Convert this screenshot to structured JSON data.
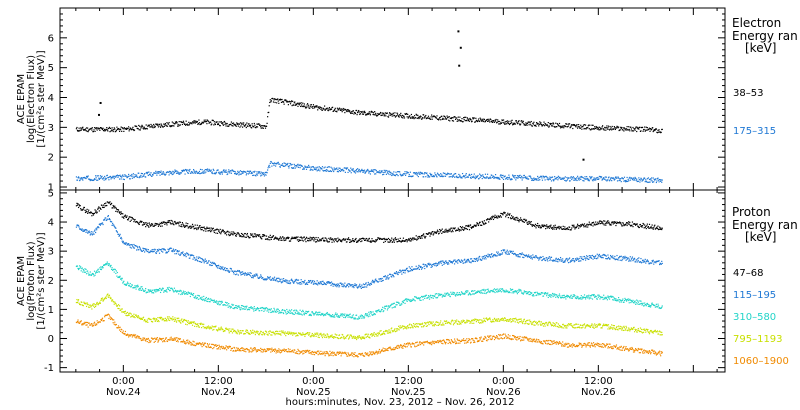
{
  "chart_data": [
    {
      "type": "scatter",
      "panel": "electron",
      "ylabel": [
        "ACE EPAM",
        "log(Electron Flux)",
        "[1/(cm²s ster MeV)]"
      ],
      "ylim": [
        0.9,
        7.0
      ],
      "yticks": [
        1,
        2,
        3,
        4,
        5,
        6
      ],
      "xlim": [
        -8,
        76
      ],
      "legend": {
        "title": [
          "Electron",
          "Energy ran",
          "[keV]"
        ],
        "items": [
          {
            "name": "38–53",
            "color": "#000000"
          },
          {
            "name": "175–315",
            "color": "#1f78d4"
          }
        ]
      },
      "series": [
        {
          "name": "38–53",
          "color": "#000000",
          "x": [
            -6,
            0,
            5,
            10,
            15,
            18,
            18.5,
            24,
            30,
            36,
            42,
            48,
            54,
            60,
            66,
            68
          ],
          "values": [
            2.95,
            2.95,
            3.1,
            3.2,
            3.1,
            3.05,
            3.95,
            3.7,
            3.5,
            3.4,
            3.3,
            3.2,
            3.1,
            3.0,
            2.95,
            2.9
          ]
        },
        {
          "name": "175–315",
          "color": "#1f78d4",
          "x": [
            -6,
            0,
            5,
            10,
            15,
            18,
            18.5,
            24,
            30,
            36,
            42,
            48,
            54,
            60,
            66,
            68
          ],
          "values": [
            1.3,
            1.35,
            1.5,
            1.55,
            1.5,
            1.45,
            1.8,
            1.65,
            1.55,
            1.45,
            1.4,
            1.35,
            1.3,
            1.3,
            1.25,
            1.25
          ]
        }
      ],
      "outliers": [
        {
          "x": 42.2,
          "y": 6.25
        },
        {
          "x": 42.5,
          "y": 5.7
        },
        {
          "x": 42.3,
          "y": 5.1
        },
        {
          "x": -3,
          "y": 3.85
        },
        {
          "x": -3.2,
          "y": 3.45
        },
        {
          "x": 58,
          "y": 1.95
        }
      ]
    },
    {
      "type": "scatter",
      "panel": "proton",
      "ylabel": [
        "ACE EPAM",
        "log(Proton Flux)",
        "[1/(cm²s ster MeV)]"
      ],
      "ylim": [
        -1.15,
        5.1
      ],
      "yticks": [
        -1,
        0,
        1,
        2,
        3,
        4,
        5
      ],
      "xlim": [
        -8,
        76
      ],
      "legend": {
        "title": [
          "Proton",
          "Energy ran",
          "[keV]"
        ],
        "items": [
          {
            "name": "47–68",
            "color": "#000000"
          },
          {
            "name": "115–195",
            "color": "#1f78d4"
          },
          {
            "name": "310–580",
            "color": "#22d4c8"
          },
          {
            "name": "795–1193",
            "color": "#c8e000"
          },
          {
            "name": "1060–1900",
            "color": "#f08a00"
          }
        ]
      },
      "series": [
        {
          "name": "47–68",
          "color": "#000000",
          "x": [
            -6,
            -4,
            -2,
            0,
            3,
            6,
            10,
            14,
            20,
            26,
            30,
            36,
            40,
            44,
            48,
            52,
            56,
            60,
            64,
            68
          ],
          "values": [
            4.6,
            4.3,
            4.7,
            4.2,
            3.9,
            4.0,
            3.8,
            3.6,
            3.45,
            3.4,
            3.4,
            3.4,
            3.7,
            3.85,
            4.3,
            3.9,
            3.8,
            4.0,
            3.95,
            3.8
          ]
        },
        {
          "name": "115–195",
          "color": "#1f78d4",
          "x": [
            -6,
            -4,
            -2,
            0,
            3,
            6,
            10,
            14,
            20,
            26,
            30,
            36,
            40,
            44,
            48,
            52,
            56,
            60,
            64,
            68
          ],
          "values": [
            3.9,
            3.6,
            4.2,
            3.3,
            3.0,
            3.05,
            2.7,
            2.3,
            2.0,
            1.9,
            1.8,
            2.4,
            2.6,
            2.7,
            3.0,
            2.8,
            2.7,
            2.85,
            2.75,
            2.6
          ]
        },
        {
          "name": "310–580",
          "color": "#22d4c8",
          "x": [
            -6,
            -4,
            -2,
            0,
            3,
            6,
            10,
            14,
            20,
            26,
            30,
            36,
            40,
            44,
            48,
            52,
            56,
            60,
            64,
            68
          ],
          "values": [
            2.5,
            2.2,
            2.6,
            1.95,
            1.65,
            1.7,
            1.4,
            1.1,
            0.95,
            0.85,
            0.75,
            1.35,
            1.5,
            1.6,
            1.7,
            1.55,
            1.45,
            1.45,
            1.3,
            1.1
          ]
        },
        {
          "name": "795–1193",
          "color": "#c8e000",
          "x": [
            -6,
            -4,
            -2,
            0,
            3,
            6,
            10,
            14,
            20,
            26,
            30,
            36,
            40,
            44,
            48,
            52,
            56,
            60,
            64,
            68
          ],
          "values": [
            1.3,
            1.1,
            1.5,
            0.9,
            0.65,
            0.7,
            0.45,
            0.25,
            0.2,
            0.1,
            0.05,
            0.45,
            0.55,
            0.6,
            0.7,
            0.55,
            0.45,
            0.45,
            0.35,
            0.2
          ]
        },
        {
          "name": "1060–1900",
          "color": "#f08a00",
          "x": [
            -6,
            -4,
            -2,
            0,
            3,
            6,
            10,
            14,
            20,
            26,
            30,
            36,
            40,
            44,
            48,
            52,
            56,
            60,
            64,
            68
          ],
          "values": [
            0.6,
            0.45,
            0.8,
            0.2,
            -0.05,
            0.0,
            -0.2,
            -0.35,
            -0.4,
            -0.5,
            -0.55,
            -0.2,
            -0.1,
            -0.05,
            0.1,
            -0.05,
            -0.2,
            -0.2,
            -0.35,
            -0.5
          ]
        }
      ]
    }
  ],
  "xaxis": {
    "ticks": [
      {
        "x": 0,
        "time": "0:00",
        "date": "Nov.24"
      },
      {
        "x": 12,
        "time": "12:00",
        "date": "Nov.24"
      },
      {
        "x": 24,
        "time": "0:00",
        "date": "Nov.25"
      },
      {
        "x": 36,
        "time": "12:00",
        "date": "Nov.25"
      },
      {
        "x": 48,
        "time": "0:00",
        "date": "Nov.26"
      },
      {
        "x": 60,
        "time": "12:00",
        "date": "Nov.26"
      }
    ],
    "minor_step": 3,
    "label": "hours:minutes, Nov. 23, 2012 – Nov. 26, 2012"
  }
}
